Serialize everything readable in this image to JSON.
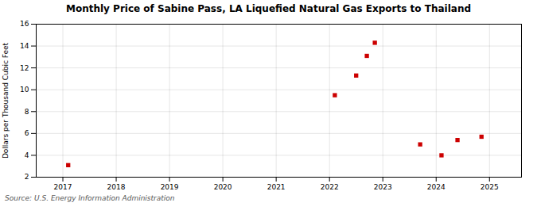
{
  "chart_data": {
    "type": "scatter",
    "title": "Monthly Price of Sabine Pass, LA Liquefied Natural Gas Exports to Thailand",
    "ylabel": "Dollars per Thousand Cubic Feet",
    "annotation": "Source: U.S. Energy Information Administration",
    "x": [
      2017.1,
      2022.1,
      2022.5,
      2022.7,
      2022.85,
      2023.7,
      2024.1,
      2024.4,
      2024.85
    ],
    "values": [
      3.1,
      9.5,
      11.3,
      13.1,
      14.3,
      5.0,
      4.0,
      5.4,
      5.7
    ],
    "color": "#cc0000",
    "marker": "square",
    "xlim": [
      2016.5,
      2025.6
    ],
    "xticks": [
      2017,
      2018,
      2019,
      2020,
      2021,
      2022,
      2023,
      2024,
      2025
    ],
    "ylim": [
      2,
      16
    ],
    "yticks": [
      2,
      4,
      6,
      8,
      10,
      12,
      14,
      16
    ],
    "grid": true
  }
}
